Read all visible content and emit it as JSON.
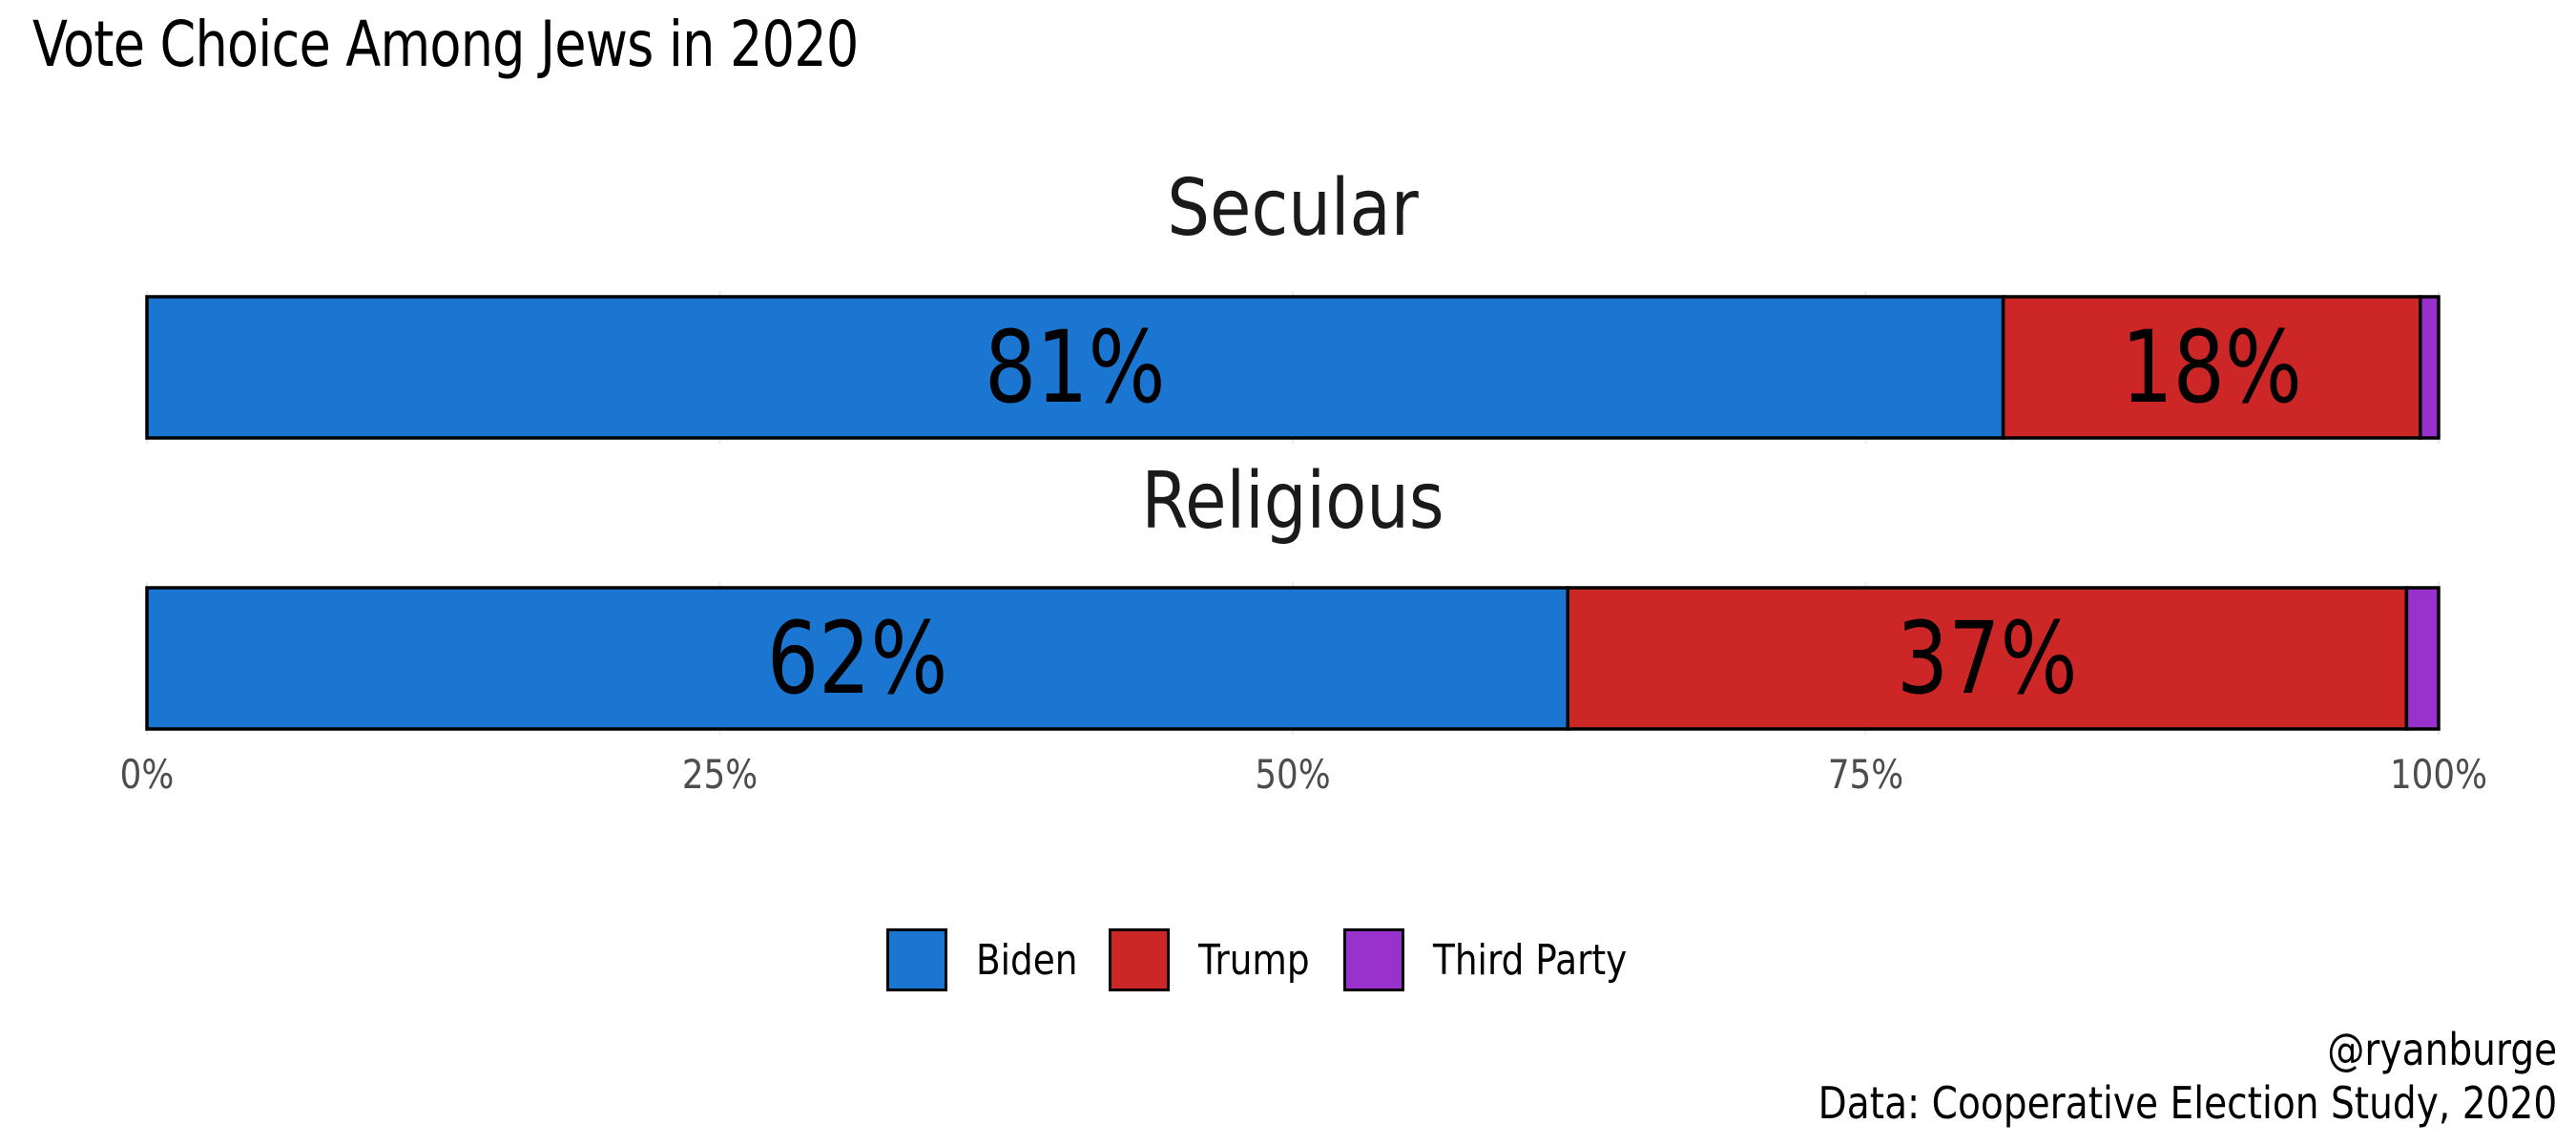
{
  "chart_data": {
    "type": "bar",
    "orientation": "horizontal",
    "stacked": true,
    "title": "Vote Choice Among Jews in 2020",
    "facets": [
      {
        "label": "Secular",
        "series": [
          {
            "name": "Biden",
            "value": 0.81,
            "label": "81%"
          },
          {
            "name": "Trump",
            "value": 0.182,
            "label": "18%"
          },
          {
            "name": "Third Party",
            "value": 0.008,
            "label": ""
          }
        ]
      },
      {
        "label": "Religious",
        "series": [
          {
            "name": "Biden",
            "value": 0.62,
            "label": "62%"
          },
          {
            "name": "Trump",
            "value": 0.366,
            "label": "37%"
          },
          {
            "name": "Third Party",
            "value": 0.014,
            "label": ""
          }
        ]
      }
    ],
    "x_ticks": [
      0,
      0.25,
      0.5,
      0.75,
      1.0
    ],
    "x_tick_labels": [
      "0%",
      "25%",
      "50%",
      "75%",
      "100%"
    ],
    "xlim": [
      0,
      1
    ],
    "grid": true,
    "legend": {
      "position": "bottom",
      "entries": [
        {
          "name": "Biden",
          "color": "#1A76D1"
        },
        {
          "name": "Trump",
          "color": "#CC2626"
        },
        {
          "name": "Third Party",
          "color": "#9932CC"
        }
      ]
    },
    "caption": [
      "@ryanburge",
      "Data: Cooperative Election Study, 2020"
    ]
  }
}
